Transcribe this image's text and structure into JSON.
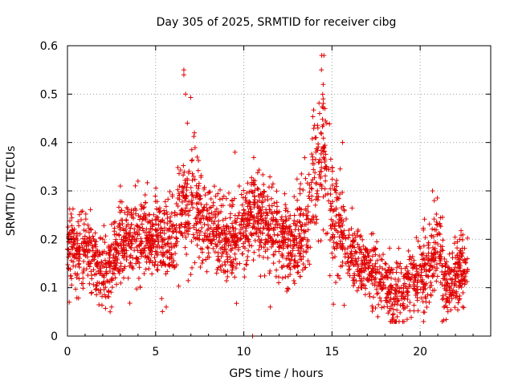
{
  "chart_data": {
    "type": "scatter",
    "title": "Day 305 of 2025, SRMTID for receiver cibg",
    "xlabel": "GPS time / hours",
    "ylabel": "SRMTID / TECUs",
    "xlim": [
      0,
      24
    ],
    "ylim": [
      0,
      0.6
    ],
    "xticks": [
      0,
      5,
      10,
      15,
      20
    ],
    "yticks": [
      0,
      0.1,
      0.2,
      0.3,
      0.4,
      0.5,
      0.6
    ],
    "xtick_labels": [
      "0",
      "5",
      "10",
      "15",
      "20"
    ],
    "ytick_labels": [
      "0",
      "0.1",
      "0.2",
      "0.3",
      "0.4",
      "0.5",
      "0.6"
    ],
    "grid": true,
    "marker": "+",
    "color": "#e00000",
    "series": [
      {
        "name": "SRMTID",
        "trend": [
          [
            0.0,
            0.2
          ],
          [
            0.5,
            0.17
          ],
          [
            1.0,
            0.19
          ],
          [
            1.5,
            0.15
          ],
          [
            2.0,
            0.14
          ],
          [
            2.5,
            0.15
          ],
          [
            3.0,
            0.19
          ],
          [
            3.5,
            0.2
          ],
          [
            4.0,
            0.21
          ],
          [
            4.5,
            0.2
          ],
          [
            5.0,
            0.21
          ],
          [
            5.5,
            0.19
          ],
          [
            6.0,
            0.2
          ],
          [
            6.5,
            0.26
          ],
          [
            7.0,
            0.27
          ],
          [
            7.5,
            0.24
          ],
          [
            8.0,
            0.22
          ],
          [
            8.5,
            0.22
          ],
          [
            9.0,
            0.2
          ],
          [
            9.5,
            0.19
          ],
          [
            10.0,
            0.22
          ],
          [
            10.5,
            0.26
          ],
          [
            11.0,
            0.24
          ],
          [
            11.5,
            0.22
          ],
          [
            12.0,
            0.21
          ],
          [
            12.5,
            0.18
          ],
          [
            13.0,
            0.19
          ],
          [
            13.5,
            0.22
          ],
          [
            14.0,
            0.33
          ],
          [
            14.5,
            0.4
          ],
          [
            15.0,
            0.24
          ],
          [
            15.5,
            0.22
          ],
          [
            16.0,
            0.17
          ],
          [
            16.5,
            0.15
          ],
          [
            17.0,
            0.14
          ],
          [
            17.5,
            0.13
          ],
          [
            18.0,
            0.11
          ],
          [
            18.5,
            0.09
          ],
          [
            19.0,
            0.09
          ],
          [
            19.5,
            0.11
          ],
          [
            20.0,
            0.13
          ],
          [
            20.5,
            0.15
          ],
          [
            21.0,
            0.18
          ],
          [
            21.5,
            0.1
          ],
          [
            22.0,
            0.13
          ],
          [
            22.5,
            0.14
          ],
          [
            22.7,
            0.13
          ]
        ],
        "spread": [
          [
            0.0,
            0.05
          ],
          [
            6.0,
            0.05
          ],
          [
            7.0,
            0.08
          ],
          [
            8.0,
            0.05
          ],
          [
            13.5,
            0.05
          ],
          [
            14.5,
            0.09
          ],
          [
            15.5,
            0.05
          ],
          [
            17.0,
            0.04
          ],
          [
            21.0,
            0.05
          ],
          [
            22.7,
            0.04
          ]
        ],
        "points": [
          [
            6.6,
            0.55
          ],
          [
            6.6,
            0.54
          ],
          [
            6.7,
            0.5
          ],
          [
            7.2,
            0.42
          ],
          [
            6.8,
            0.44
          ],
          [
            14.4,
            0.55
          ],
          [
            14.5,
            0.52
          ],
          [
            14.5,
            0.49
          ],
          [
            14.6,
            0.47
          ],
          [
            14.3,
            0.46
          ],
          [
            14.2,
            0.43
          ],
          [
            14.1,
            0.41
          ],
          [
            14.7,
            0.44
          ],
          [
            13.9,
            0.37
          ],
          [
            15.6,
            0.4
          ],
          [
            10.5,
            0.0
          ],
          [
            11.5,
            0.06
          ],
          [
            16.5,
            0.1
          ],
          [
            2.5,
            0.06
          ],
          [
            0.1,
            0.07
          ],
          [
            20.7,
            0.3
          ],
          [
            20.8,
            0.28
          ],
          [
            3.0,
            0.31
          ],
          [
            4.0,
            0.32
          ],
          [
            9.5,
            0.38
          ],
          [
            22.4,
            0.06
          ],
          [
            18.7,
            0.04
          ],
          [
            17.6,
            0.04
          ],
          [
            5.6,
            0.06
          ],
          [
            12.2,
            0.12
          ]
        ]
      }
    ]
  }
}
